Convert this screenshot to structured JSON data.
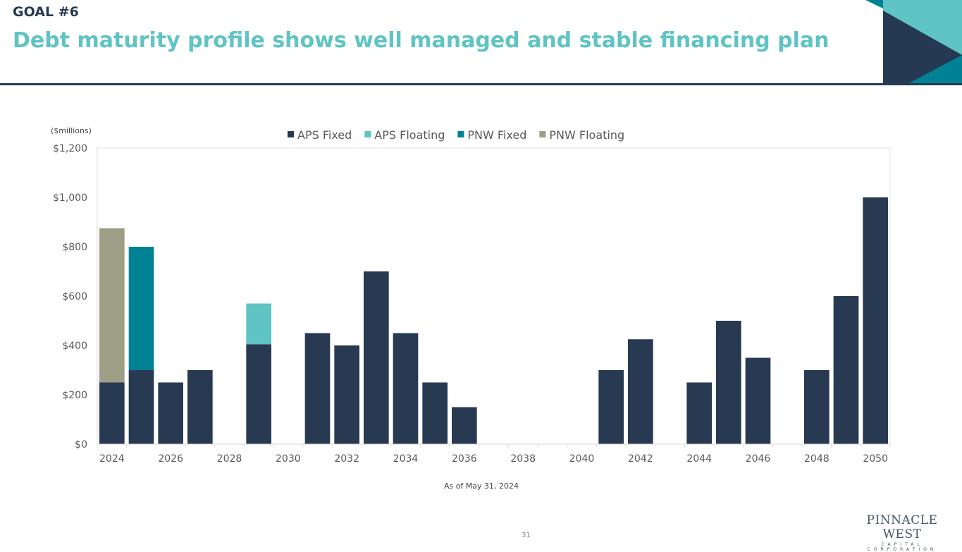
{
  "header": {
    "goal": "GOAL #6",
    "title": "Debt maturity profile shows well managed and stable financing plan"
  },
  "footer": {
    "page_number": "31",
    "logo_line1": "PINNACLE WEST",
    "logo_line2": "CAPITAL CORPORATION"
  },
  "colors": {
    "APS Fixed": "#283a52",
    "APS Floating": "#5fc4c3",
    "PNW Fixed": "#008294",
    "PNW Floating": "#9e9e86",
    "accent": "#5fc4c3",
    "dark": "#253a52"
  },
  "chart_data": {
    "type": "bar",
    "stacked": true,
    "title": "",
    "ylabel": "($millions)",
    "xlabel": "As of May 31, 2024",
    "ylim": [
      0,
      1200
    ],
    "yticks": [
      "$0",
      "$200",
      "$400",
      "$600",
      "$800",
      "$1,000",
      "$1,200"
    ],
    "ytick_values": [
      0,
      200,
      400,
      600,
      800,
      1000,
      1200
    ],
    "xtick_labels": [
      "2024",
      "2026",
      "2028",
      "2030",
      "2032",
      "2034",
      "2036",
      "2038",
      "2040",
      "2042",
      "2044",
      "2046",
      "2048",
      "2050"
    ],
    "legend_position": "top",
    "grid": false,
    "categories": [
      "2024",
      "2025",
      "2026",
      "2027",
      "2028",
      "2029",
      "2030",
      "2031",
      "2032",
      "2033",
      "2034",
      "2035",
      "2036",
      "2037",
      "2038",
      "2039",
      "2040",
      "2041",
      "2042",
      "2043",
      "2044",
      "2045",
      "2046",
      "2047",
      "2048",
      "2049",
      "2050"
    ],
    "series": [
      {
        "name": "APS Fixed",
        "values": [
          250,
          300,
          250,
          300,
          0,
          405,
          0,
          450,
          400,
          700,
          450,
          250,
          150,
          0,
          0,
          0,
          0,
          300,
          425,
          0,
          250,
          500,
          350,
          0,
          300,
          600,
          1000
        ]
      },
      {
        "name": "APS Floating",
        "values": [
          0,
          0,
          0,
          0,
          0,
          165,
          0,
          0,
          0,
          0,
          0,
          0,
          0,
          0,
          0,
          0,
          0,
          0,
          0,
          0,
          0,
          0,
          0,
          0,
          0,
          0,
          0
        ]
      },
      {
        "name": "PNW Fixed",
        "values": [
          0,
          500,
          0,
          0,
          0,
          0,
          0,
          0,
          0,
          0,
          0,
          0,
          0,
          0,
          0,
          0,
          0,
          0,
          0,
          0,
          0,
          0,
          0,
          0,
          0,
          0,
          0
        ]
      },
      {
        "name": "PNW Floating",
        "values": [
          625,
          0,
          0,
          0,
          0,
          0,
          0,
          0,
          0,
          0,
          0,
          0,
          0,
          0,
          0,
          0,
          0,
          0,
          0,
          0,
          0,
          0,
          0,
          0,
          0,
          0,
          0
        ]
      }
    ]
  }
}
